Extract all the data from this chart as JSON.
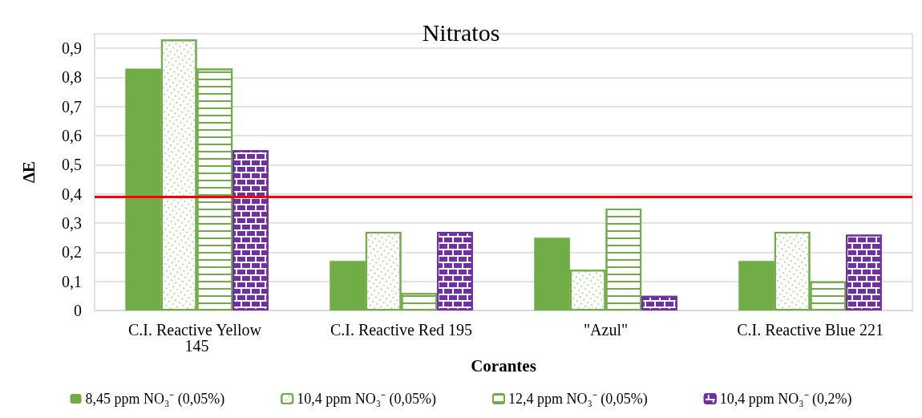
{
  "chart_data": {
    "type": "bar",
    "title": "Nitratos",
    "xlabel": "Corantes",
    "ylabel": "ΔE",
    "categories": [
      "C.I. Reactive Yellow 145",
      "C.I. Reactive Red 195",
      "\"Azul\"",
      "C.I. Reactive Blue 221"
    ],
    "series": [
      {
        "name": "8,45 ppm NO₃⁻ (0,05%)",
        "color": "#70ad47",
        "values": [
          0.83,
          0.17,
          0.25,
          0.17
        ]
      },
      {
        "name": "10,4 ppm NO₃⁻ (0,05%)",
        "color": "#70ad47",
        "values": [
          0.93,
          0.27,
          0.14,
          0.27
        ]
      },
      {
        "name": "12,4 ppm NO₃⁻ (0,05%)",
        "color": "#70ad47",
        "values": [
          0.83,
          0.06,
          0.35,
          0.1
        ]
      },
      {
        "name": "10,4 ppm NO₃⁻ (0,2%)",
        "color": "#7030a0",
        "values": [
          0.55,
          0.27,
          0.05,
          0.26
        ]
      }
    ],
    "ylim": [
      0,
      0.95
    ],
    "yticks": [
      0,
      {
        "value": 0.1,
        "label": "0,1"
      },
      {
        "value": 0.2,
        "label": "0,2"
      },
      {
        "value": 0.3,
        "label": "0,3"
      },
      {
        "value": 0.4,
        "label": "0,4"
      },
      {
        "value": 0.5,
        "label": "0,5"
      },
      {
        "value": 0.6,
        "label": "0,6"
      },
      {
        "value": 0.7,
        "label": "0,7"
      },
      {
        "value": 0.8,
        "label": "0,8"
      },
      {
        "value": 0.9,
        "label": "0,9"
      }
    ],
    "ref_lines": [
      {
        "axis": "y",
        "value": 0.39,
        "color": "#ff0000"
      }
    ],
    "grid": "y",
    "legend": "bottom"
  }
}
